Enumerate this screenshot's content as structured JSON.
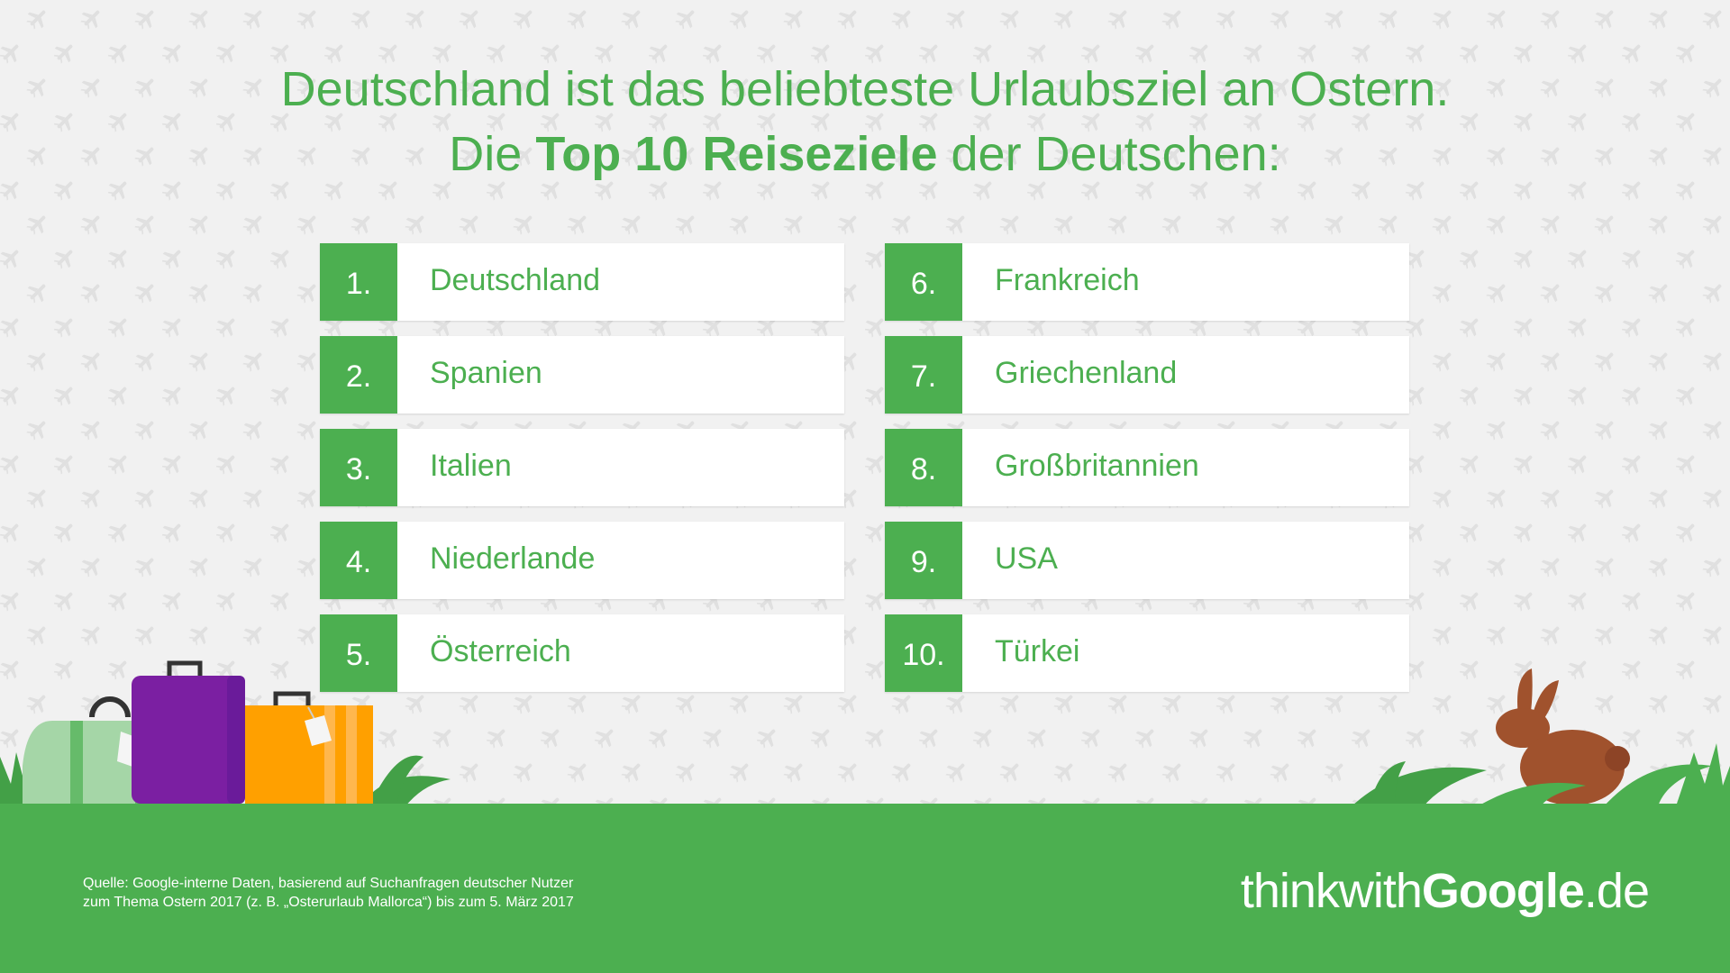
{
  "title": {
    "line1": "Deutschland ist das beliebteste Urlaubsziel an Ostern.",
    "line2_prefix": "Die ",
    "line2_bold": "Top 10 Reiseziele",
    "line2_suffix": " der Deutschen:"
  },
  "ranking": {
    "left": [
      {
        "rank": "1.",
        "name": "Deutschland"
      },
      {
        "rank": "2.",
        "name": "Spanien"
      },
      {
        "rank": "3.",
        "name": "Italien"
      },
      {
        "rank": "4.",
        "name": "Niederlande"
      },
      {
        "rank": "5.",
        "name": "Österreich"
      }
    ],
    "right": [
      {
        "rank": "6.",
        "name": "Frankreich"
      },
      {
        "rank": "7.",
        "name": "Griechenland"
      },
      {
        "rank": "8.",
        "name": "Großbritannien"
      },
      {
        "rank": "9.",
        "name": "USA"
      },
      {
        "rank": "10.",
        "name": "Türkei"
      }
    ]
  },
  "footer": {
    "source_line1": "Quelle: Google-interne Daten, basierend auf Suchanfragen deutscher Nutzer",
    "source_line2": "zum Thema Ostern 2017 (z. B. „Osterurlaub Mallorca“) bis zum 5. März 2017",
    "brand_think": "thinkwith",
    "brand_google": "Google",
    "brand_tld": ".de"
  },
  "icons": [
    "airplane-icon",
    "green-bag-icon",
    "purple-suitcase-icon",
    "orange-suitcase-icon",
    "bunny-icon",
    "grass-icon"
  ],
  "colors": {
    "green": "#4caf50",
    "background": "#f1f1f1",
    "purple": "#7b1fa2",
    "orange": "#ffa000",
    "bag_green": "#a5d6a7",
    "bunny": "#a0522d"
  }
}
